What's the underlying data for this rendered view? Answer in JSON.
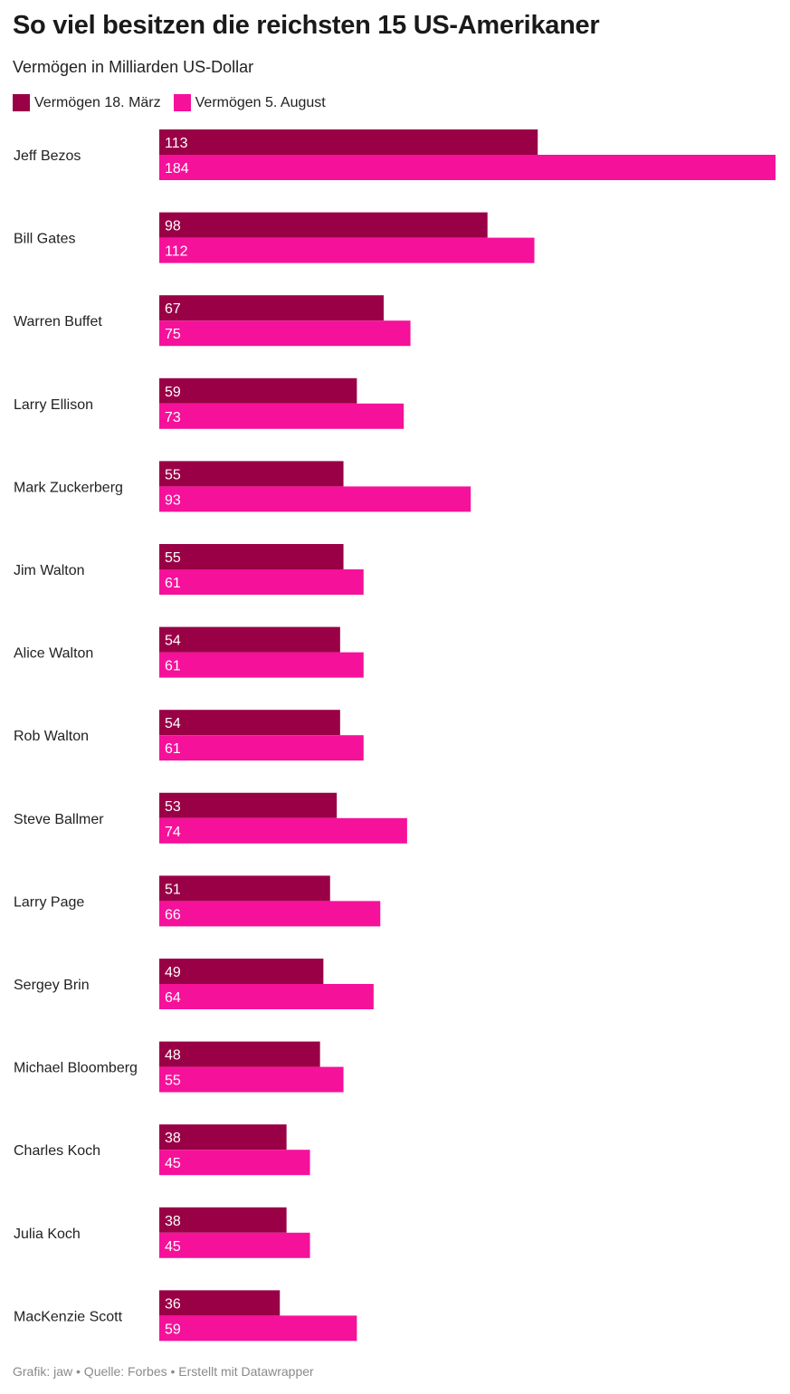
{
  "header": {
    "title": "So viel besitzen die reichsten 15 US-Amerikaner",
    "subtitle": "Vermögen in Milliarden US-Dollar"
  },
  "footer": {
    "credit": "Grafik: jaw • Quelle: Forbes • Erstellt mit Datawrapper"
  },
  "chart_data": {
    "type": "bar",
    "orientation": "horizontal",
    "title": "So viel besitzen die reichsten 15 US-Amerikaner",
    "subtitle": "Vermögen in Milliarden US-Dollar",
    "legend_position": "top-left",
    "grid": false,
    "xlim": [
      0,
      184
    ],
    "categories": [
      "Jeff Bezos",
      "Bill Gates",
      "Warren Buffet",
      "Larry Ellison",
      "Mark Zuckerberg",
      "Jim Walton",
      "Alice Walton",
      "Rob Walton",
      "Steve Ballmer",
      "Larry Page",
      "Sergey Brin",
      "Michael Bloomberg",
      "Charles Koch",
      "Julia Koch",
      "MacKenzie Scott"
    ],
    "series": [
      {
        "name": "Vermögen 18. März",
        "color": "#990046",
        "values": [
          113,
          98,
          67,
          59,
          55,
          55,
          54,
          54,
          53,
          51,
          49,
          48,
          38,
          38,
          36
        ]
      },
      {
        "name": "Vermögen 5. August",
        "color": "#f5119a",
        "values": [
          184,
          112,
          75,
          73,
          93,
          61,
          61,
          61,
          74,
          66,
          64,
          55,
          45,
          45,
          59
        ]
      }
    ]
  }
}
